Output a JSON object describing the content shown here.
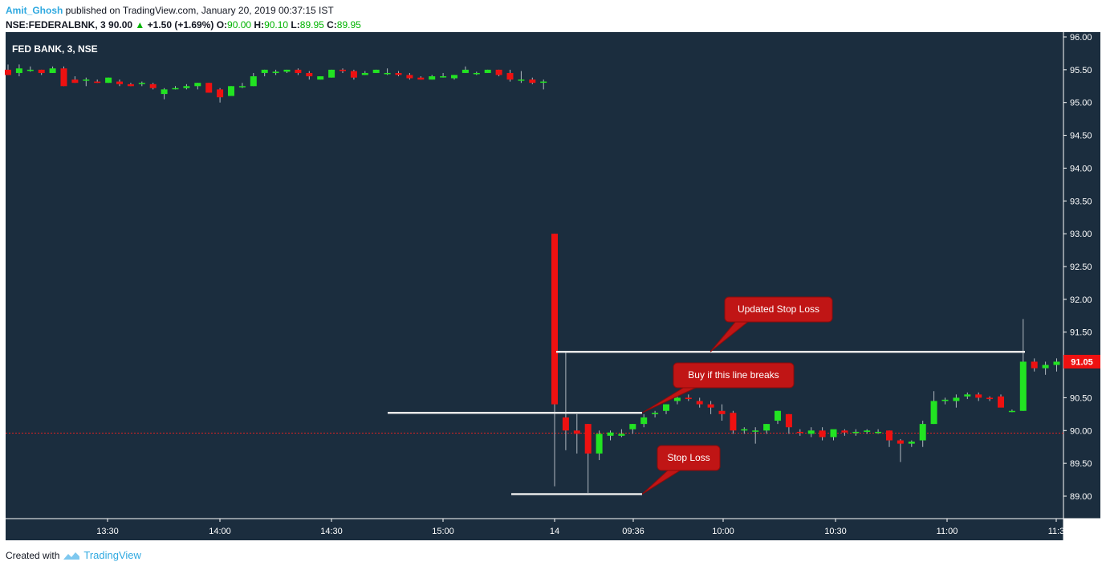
{
  "header": {
    "author": "Amit_Ghosh",
    "published_text": " published on TradingView.com, January 20, 2019 00:37:15 IST",
    "symbol_line": "NSE:FEDERALBNK, 3",
    "last_price": " 90.00",
    "change_arrow": "▲",
    "change": " +1.50 (+1.69%)",
    "o_label": " O:",
    "o_value": "90.00",
    "h_label": " H:",
    "h_value": "90.10",
    "l_label": " L:",
    "l_value": "89.95",
    "c_label": " C:",
    "c_value": "89.95"
  },
  "footer": {
    "created_with": "Created with",
    "brand": "TradingView"
  },
  "colors": {
    "background": "#1b2d3e",
    "up": "#22e322",
    "down": "#ee1111",
    "wick": "#b0b8c0",
    "callout": "#c01515",
    "price_badge": "#ee1111",
    "dotted_line": "#dd2222"
  },
  "chart_data": {
    "type": "candlestick",
    "legend": "FED BANK, 3, NSE",
    "y_ticks": [
      "96.00",
      "95.50",
      "95.00",
      "94.50",
      "94.00",
      "93.50",
      "93.00",
      "92.50",
      "92.00",
      "91.50",
      "91.00",
      "90.50",
      "90.00",
      "89.50",
      "89.00"
    ],
    "y_range": [
      88.6,
      96.0
    ],
    "x_ticks": [
      "13:30",
      "14:00",
      "14:30",
      "15:00",
      "14",
      "09:36",
      "10:00",
      "10:30",
      "11:00",
      "11:3"
    ],
    "current_price": "91.05",
    "day1_candles": [
      [
        95.5,
        95.58,
        95.42,
        95.42
      ],
      [
        95.45,
        95.58,
        95.4,
        95.52
      ],
      [
        95.5,
        95.55,
        95.47,
        95.5
      ],
      [
        95.5,
        95.5,
        95.42,
        95.45
      ],
      [
        95.45,
        95.55,
        95.45,
        95.52
      ],
      [
        95.52,
        95.55,
        95.25,
        95.25
      ],
      [
        95.35,
        95.4,
        95.3,
        95.3
      ],
      [
        95.35,
        95.38,
        95.25,
        95.35
      ],
      [
        95.32,
        95.35,
        95.3,
        95.3
      ],
      [
        95.3,
        95.38,
        95.3,
        95.38
      ],
      [
        95.32,
        95.35,
        95.25,
        95.28
      ],
      [
        95.28,
        95.3,
        95.25,
        95.25
      ],
      [
        95.3,
        95.32,
        95.25,
        95.3
      ],
      [
        95.28,
        95.3,
        95.2,
        95.22
      ],
      [
        95.13,
        95.22,
        95.05,
        95.2
      ],
      [
        95.22,
        95.25,
        95.2,
        95.22
      ],
      [
        95.22,
        95.28,
        95.2,
        95.25
      ],
      [
        95.25,
        95.3,
        95.2,
        95.3
      ],
      [
        95.3,
        95.3,
        95.15,
        95.15
      ],
      [
        95.2,
        95.22,
        95.0,
        95.08
      ],
      [
        95.1,
        95.25,
        95.1,
        95.25
      ],
      [
        95.25,
        95.3,
        95.22,
        95.25
      ],
      [
        95.25,
        95.45,
        95.25,
        95.4
      ],
      [
        95.45,
        95.5,
        95.4,
        95.5
      ],
      [
        95.45,
        95.5,
        95.42,
        95.47
      ],
      [
        95.47,
        95.5,
        95.45,
        95.5
      ],
      [
        95.5,
        95.52,
        95.42,
        95.45
      ],
      [
        95.45,
        95.48,
        95.35,
        95.4
      ],
      [
        95.35,
        95.4,
        95.35,
        95.4
      ],
      [
        95.38,
        95.5,
        95.38,
        95.5
      ],
      [
        95.5,
        95.52,
        95.45,
        95.48
      ],
      [
        95.48,
        95.5,
        95.35,
        95.38
      ],
      [
        95.42,
        95.48,
        95.42,
        95.45
      ],
      [
        95.45,
        95.5,
        95.45,
        95.5
      ],
      [
        95.45,
        95.52,
        95.42,
        95.45
      ],
      [
        95.45,
        95.48,
        95.4,
        95.42
      ],
      [
        95.42,
        95.45,
        95.35,
        95.37
      ],
      [
        95.38,
        95.4,
        95.35,
        95.35
      ],
      [
        95.35,
        95.42,
        95.35,
        95.4
      ],
      [
        95.4,
        95.45,
        95.38,
        95.4
      ],
      [
        95.37,
        95.42,
        95.35,
        95.42
      ],
      [
        95.45,
        95.55,
        95.45,
        95.5
      ],
      [
        95.45,
        95.47,
        95.42,
        95.45
      ],
      [
        95.45,
        95.5,
        95.45,
        95.5
      ],
      [
        95.5,
        95.5,
        95.4,
        95.42
      ],
      [
        95.45,
        95.5,
        95.32,
        95.35
      ],
      [
        95.35,
        95.48,
        95.3,
        95.35
      ],
      [
        95.35,
        95.38,
        95.28,
        95.3
      ],
      [
        95.32,
        95.35,
        95.2,
        95.32
      ]
    ],
    "day2_candles": [
      [
        93.0,
        93.0,
        89.15,
        90.4
      ],
      [
        90.2,
        91.2,
        89.7,
        90.0
      ],
      [
        90.0,
        90.25,
        89.65,
        89.95
      ],
      [
        90.1,
        90.1,
        89.05,
        89.65
      ],
      [
        89.65,
        90.0,
        89.55,
        89.95
      ],
      [
        89.92,
        90.0,
        89.85,
        89.97
      ],
      [
        89.92,
        90.02,
        89.9,
        89.95
      ],
      [
        90.02,
        90.1,
        89.95,
        90.1
      ],
      [
        90.1,
        90.25,
        90.05,
        90.2
      ],
      [
        90.25,
        90.3,
        90.2,
        90.27
      ],
      [
        90.3,
        90.4,
        90.25,
        90.4
      ],
      [
        90.45,
        90.55,
        90.4,
        90.5
      ],
      [
        90.5,
        90.55,
        90.45,
        90.48
      ],
      [
        90.45,
        90.5,
        90.35,
        90.4
      ],
      [
        90.4,
        90.45,
        90.25,
        90.35
      ],
      [
        90.3,
        90.4,
        90.15,
        90.25
      ],
      [
        90.27,
        90.3,
        89.95,
        90.0
      ],
      [
        90.0,
        90.05,
        89.95,
        90.02
      ],
      [
        90.0,
        90.05,
        89.8,
        90.0
      ],
      [
        90.0,
        90.1,
        89.95,
        90.1
      ],
      [
        90.15,
        90.3,
        90.1,
        90.3
      ],
      [
        90.25,
        90.25,
        89.95,
        90.05
      ],
      [
        89.98,
        90.02,
        89.92,
        89.97
      ],
      [
        89.95,
        90.05,
        89.9,
        90.0
      ],
      [
        90.0,
        90.05,
        89.85,
        89.9
      ],
      [
        89.9,
        90.0,
        89.85,
        90.02
      ],
      [
        90.0,
        90.02,
        89.92,
        89.97
      ],
      [
        89.97,
        90.02,
        89.92,
        89.98
      ],
      [
        89.98,
        90.02,
        89.95,
        90.0
      ],
      [
        89.98,
        90.02,
        89.95,
        89.98
      ],
      [
        90.0,
        90.0,
        89.75,
        89.85
      ],
      [
        89.85,
        89.87,
        89.52,
        89.8
      ],
      [
        89.8,
        89.85,
        89.75,
        89.83
      ],
      [
        89.85,
        90.15,
        89.75,
        90.1
      ],
      [
        90.1,
        90.6,
        90.1,
        90.45
      ],
      [
        90.45,
        90.5,
        90.4,
        90.47
      ],
      [
        90.45,
        90.55,
        90.35,
        90.5
      ],
      [
        90.52,
        90.58,
        90.48,
        90.55
      ],
      [
        90.55,
        90.58,
        90.45,
        90.5
      ],
      [
        90.5,
        90.52,
        90.45,
        90.48
      ],
      [
        90.52,
        90.55,
        90.4,
        90.35
      ],
      [
        90.3,
        90.32,
        90.28,
        90.3
      ],
      [
        90.3,
        91.7,
        90.3,
        91.05
      ],
      [
        91.05,
        91.1,
        90.9,
        90.95
      ],
      [
        90.95,
        91.05,
        90.85,
        91.0
      ],
      [
        91.0,
        91.1,
        90.9,
        91.05
      ]
    ],
    "lines": [
      {
        "label": "Updated Stop Loss",
        "price": 91.2
      },
      {
        "label": "Buy if this line breaks",
        "price": 90.27
      },
      {
        "label": "Stop Loss",
        "price": 89.03
      }
    ],
    "dotted_price": 89.96
  }
}
